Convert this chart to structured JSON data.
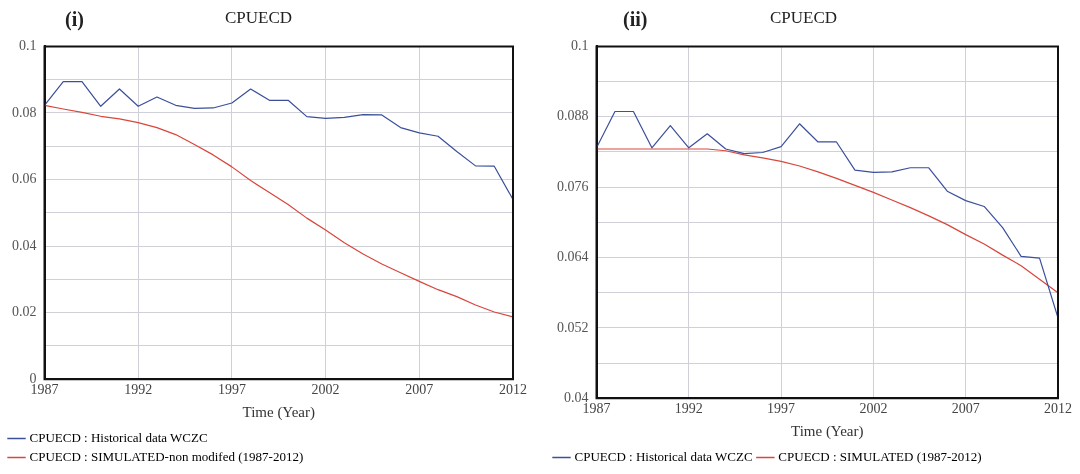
{
  "chart_data": [
    {
      "type": "line",
      "title": "CPUECD",
      "xlabel": "Time (Year)",
      "annotations": [
        "(i)"
      ],
      "x": [
        1987,
        1988,
        1989,
        1990,
        1991,
        1992,
        1993,
        1994,
        1995,
        1996,
        1997,
        1998,
        1999,
        2000,
        2001,
        2002,
        2003,
        2004,
        2005,
        2006,
        2007,
        2008,
        2009,
        2010,
        2011,
        2012
      ],
      "series": [
        {
          "name": "CPUECD : Historical data WCZC",
          "color": "#3b4f9c",
          "values": [
            0.0823,
            0.0894,
            0.0894,
            0.082,
            0.0872,
            0.082,
            0.0848,
            0.0823,
            0.0814,
            0.0815,
            0.083,
            0.0872,
            0.0838,
            0.0838,
            0.0789,
            0.0784,
            0.0787,
            0.0795,
            0.0794,
            0.0756,
            0.074,
            0.073,
            0.0684,
            0.0641,
            0.064,
            0.054
          ]
        },
        {
          "name": "CPUECD : SIMULATED-non modifed (1987-2012)",
          "color": "#d9463c",
          "values": [
            0.0823,
            0.0812,
            0.0802,
            0.079,
            0.0782,
            0.0771,
            0.0756,
            0.0735,
            0.0705,
            0.0674,
            0.0638,
            0.0597,
            0.0561,
            0.0525,
            0.0484,
            0.0448,
            0.041,
            0.0376,
            0.0346,
            0.032,
            0.0294,
            0.0269,
            0.0248,
            0.0223,
            0.0202,
            0.0187
          ]
        }
      ],
      "xlim": [
        1987,
        2012
      ],
      "xticks": [
        1987,
        1992,
        1997,
        2002,
        2007,
        2012
      ],
      "ylim": [
        0,
        0.1
      ],
      "yticks": [
        0,
        {
          "value": 0.01,
          "label": null
        },
        0.02,
        {
          "value": 0.03,
          "label": null
        },
        0.04,
        {
          "value": 0.05,
          "label": null
        },
        0.06,
        {
          "value": 0.07,
          "label": null
        },
        0.08,
        {
          "value": 0.09,
          "label": null
        },
        0.1
      ],
      "grid": true,
      "legend": "bottom",
      "marker": "none",
      "line_style": "solid"
    },
    {
      "type": "line",
      "title": "CPUECD",
      "xlabel": "Time (Year)",
      "annotations": [
        "(ii)"
      ],
      "x": [
        1987,
        1988,
        1989,
        1990,
        1991,
        1992,
        1993,
        1994,
        1995,
        1996,
        1997,
        1998,
        1999,
        2000,
        2001,
        2002,
        2003,
        2004,
        2005,
        2006,
        2007,
        2008,
        2009,
        2010,
        2011,
        2012
      ],
      "series": [
        {
          "name": "CPUECD : Historical data WCZC",
          "color": "#3b4f9c",
          "values": [
            0.0827,
            0.0889,
            0.0889,
            0.0827,
            0.0865,
            0.0827,
            0.0851,
            0.0825,
            0.0817,
            0.0819,
            0.0829,
            0.0868,
            0.0837,
            0.0837,
            0.0789,
            0.0785,
            0.0786,
            0.0793,
            0.0793,
            0.0753,
            0.0737,
            0.0727,
            0.0691,
            0.0642,
            0.0639,
            0.0537
          ]
        },
        {
          "name": "CPUECD : SIMULATED (1987-2012)",
          "color": "#d9463c",
          "values": [
            0.0825,
            0.0825,
            0.0825,
            0.0825,
            0.0825,
            0.0825,
            0.0825,
            0.0822,
            0.0815,
            0.081,
            0.0804,
            0.0796,
            0.0786,
            0.0775,
            0.0763,
            0.0751,
            0.0738,
            0.0725,
            0.0711,
            0.0696,
            0.0679,
            0.0663,
            0.0644,
            0.0626,
            0.0603,
            0.058
          ]
        }
      ],
      "xlim": [
        1987,
        2012
      ],
      "xticks": [
        1987,
        1992,
        1997,
        2002,
        2007,
        2012
      ],
      "ylim": [
        0.04,
        0.1
      ],
      "yticks": [
        0.04,
        {
          "value": 0.046,
          "label": null
        },
        0.052,
        {
          "value": 0.058,
          "label": null
        },
        0.064,
        {
          "value": 0.07,
          "label": null
        },
        0.076,
        {
          "value": 0.082,
          "label": null
        },
        0.088,
        {
          "value": 0.094,
          "label": null
        },
        0.1
      ],
      "grid": true,
      "legend": "bottom",
      "marker": "none",
      "line_style": "solid"
    }
  ]
}
